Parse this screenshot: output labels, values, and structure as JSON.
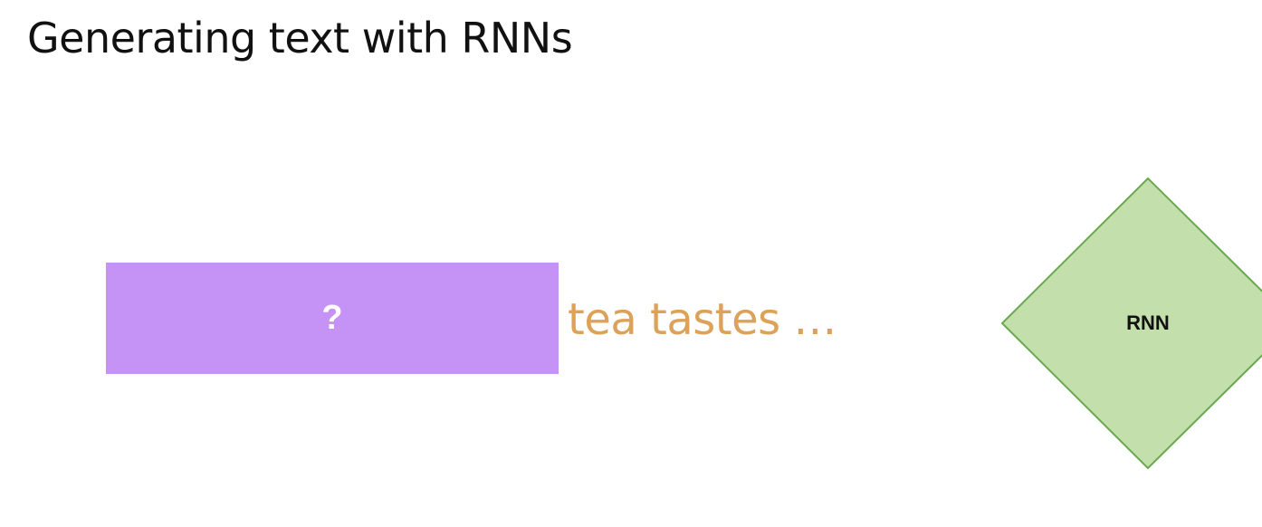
{
  "slide": {
    "title": "Generating text with RNNs"
  },
  "input": {
    "unknown_word": "?",
    "continuation": "tea tastes …",
    "box_color": "#c592f5",
    "text_color": "#dda25a"
  },
  "model": {
    "label": "RNN",
    "fill_color": "#c2dfac",
    "stroke_color": "#6aa84f"
  }
}
